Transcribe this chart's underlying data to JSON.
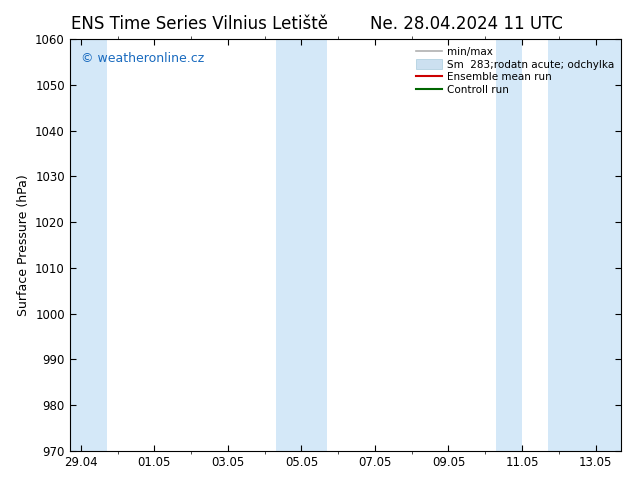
{
  "title_left": "ENS Time Series Vilnius Letiště",
  "title_right": "Ne. 28.04.2024 11 UTC",
  "ylabel": "Surface Pressure (hPa)",
  "ylim": [
    970,
    1060
  ],
  "yticks": [
    970,
    980,
    990,
    1000,
    1010,
    1020,
    1030,
    1040,
    1050,
    1060
  ],
  "xtick_labels": [
    "29.04",
    "01.05",
    "03.05",
    "05.05",
    "07.05",
    "09.05",
    "11.05",
    "13.05"
  ],
  "xtick_positions": [
    0,
    2,
    4,
    6,
    8,
    10,
    12,
    14
  ],
  "xmin": -0.3,
  "xmax": 14.7,
  "bg_color": "#ffffff",
  "plot_bg_color": "#ffffff",
  "shaded_bands": [
    {
      "x_start": -0.3,
      "x_end": 0.7,
      "color": "#d4e8f8"
    },
    {
      "x_start": 5.3,
      "x_end": 6.7,
      "color": "#d4e8f8"
    },
    {
      "x_start": 11.3,
      "x_end": 12.0,
      "color": "#d4e8f8"
    },
    {
      "x_start": 12.7,
      "x_end": 14.7,
      "color": "#d4e8f8"
    }
  ],
  "watermark_text": "© weatheronline.cz",
  "watermark_color": "#1a6bbf",
  "watermark_fontsize": 9,
  "legend_entries": [
    {
      "label": "min/max",
      "color": "#b0b0b0",
      "type": "line",
      "lw": 1.2
    },
    {
      "label": "Sm  283;rodatn acute; odchylka",
      "color": "#cce0f0",
      "type": "patch"
    },
    {
      "label": "Ensemble mean run",
      "color": "#cc0000",
      "type": "line",
      "lw": 1.5
    },
    {
      "label": "Controll run",
      "color": "#006600",
      "type": "line",
      "lw": 1.5
    }
  ],
  "title_fontsize": 12,
  "axis_label_fontsize": 9,
  "tick_fontsize": 8.5,
  "legend_fontsize": 7.5
}
